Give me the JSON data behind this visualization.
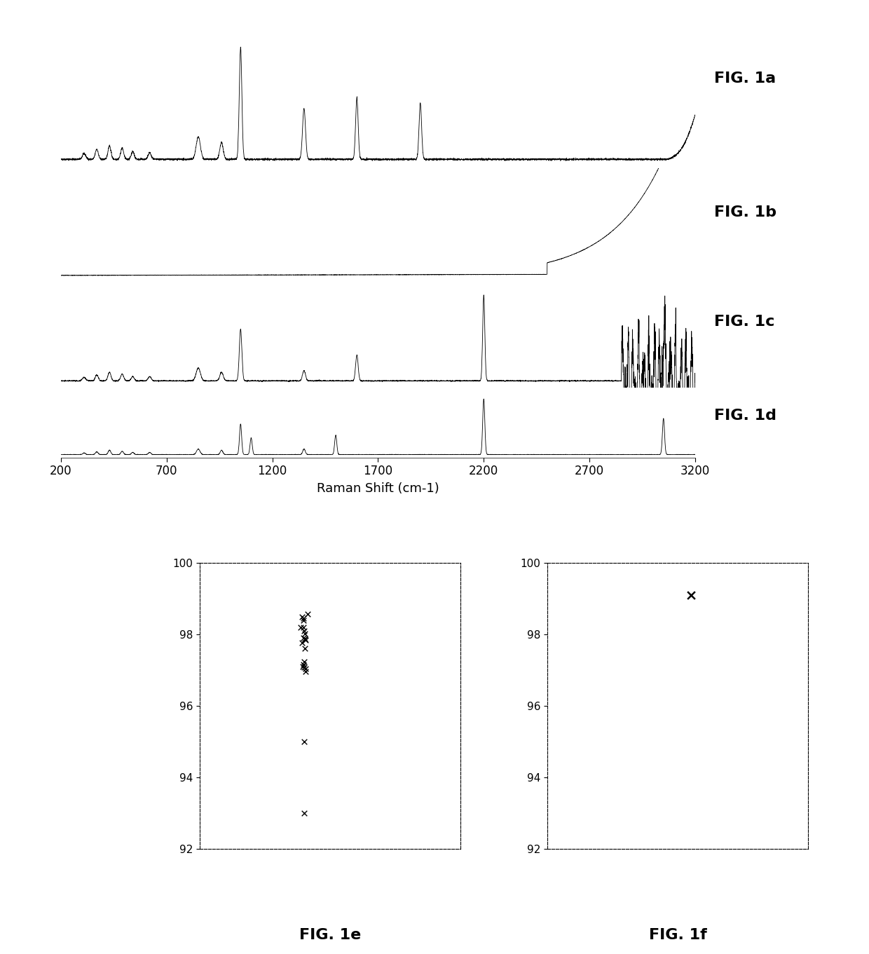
{
  "fig_width": 12.4,
  "fig_height": 13.61,
  "background_color": "#ffffff",
  "xmin": 200,
  "xmax": 3200,
  "xticks": [
    200,
    700,
    1200,
    1700,
    2200,
    2700,
    3200
  ],
  "xlabel": "Raman Shift (cm-1)",
  "label_fontsize": 13,
  "tick_fontsize": 12,
  "fig_labels": [
    "FIG. 1a",
    "FIG. 1b",
    "FIG. 1c",
    "FIG. 1d"
  ],
  "fig_labels_bottom": [
    "FIG. 1e",
    "FIG. 1f"
  ],
  "fig_label_fontsize": 16,
  "scatter_ylim": [
    92,
    100
  ],
  "scatter_yticks": [
    92,
    94,
    96,
    98,
    100
  ]
}
